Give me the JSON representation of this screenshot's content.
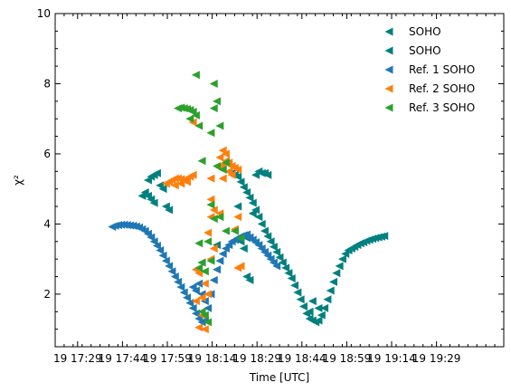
{
  "chart_data": {
    "type": "scatter",
    "xlabel": "Time [UTC]",
    "ylabel": "χ²",
    "x_unit": "minutes after 17:14 UTC on day 19",
    "xlim": [
      0,
      150
    ],
    "ylim": [
      0.5,
      10
    ],
    "grid": false,
    "legend_position": "top-right",
    "x_ticks": [
      {
        "value": 7.5,
        "label": "19 17:29"
      },
      {
        "value": 22.5,
        "label": "19 17:44"
      },
      {
        "value": 37.5,
        "label": "19 17:59"
      },
      {
        "value": 52.5,
        "label": "19 18:14"
      },
      {
        "value": 67.5,
        "label": "19 18:29"
      },
      {
        "value": 82.5,
        "label": "19 18:44"
      },
      {
        "value": 97.5,
        "label": "19 18:59"
      },
      {
        "value": 112.5,
        "label": "19 19:14"
      },
      {
        "value": 127.5,
        "label": "19 19:29"
      }
    ],
    "y_ticks": [
      2,
      4,
      6,
      8,
      10
    ],
    "series": [
      {
        "name": "SOHO",
        "color": "#00807f",
        "marker": "triangle-left",
        "points": [
          [
            58,
            5.5
          ],
          [
            59,
            5.45
          ],
          [
            60,
            5.4
          ],
          [
            61,
            5.35
          ],
          [
            62,
            5.2
          ],
          [
            63,
            5.05
          ],
          [
            64,
            4.9
          ],
          [
            65,
            4.75
          ],
          [
            66,
            4.6
          ],
          [
            67,
            4.4
          ],
          [
            68,
            4.2
          ],
          [
            69,
            4.0
          ],
          [
            70,
            3.8
          ],
          [
            71,
            3.65
          ],
          [
            72,
            3.5
          ],
          [
            73,
            3.35
          ],
          [
            74,
            3.2
          ],
          [
            75,
            3.05
          ],
          [
            76,
            2.9
          ],
          [
            77,
            2.75
          ],
          [
            78,
            2.6
          ],
          [
            79,
            2.45
          ],
          [
            80,
            2.25
          ],
          [
            81,
            2.05
          ],
          [
            82,
            1.85
          ],
          [
            83,
            1.65
          ],
          [
            84,
            1.45
          ],
          [
            85,
            1.3
          ],
          [
            86,
            1.25
          ],
          [
            87,
            1.2
          ],
          [
            88,
            1.25
          ],
          [
            89,
            1.4
          ],
          [
            90,
            1.6
          ],
          [
            91,
            1.85
          ],
          [
            92,
            2.1
          ],
          [
            93,
            2.35
          ],
          [
            94,
            2.6
          ],
          [
            95,
            2.8
          ],
          [
            96,
            3.0
          ],
          [
            97,
            3.15
          ],
          [
            98,
            3.25
          ],
          [
            99,
            3.3
          ],
          [
            100,
            3.35
          ],
          [
            101,
            3.4
          ],
          [
            102,
            3.45
          ],
          [
            103,
            3.48
          ],
          [
            104,
            3.52
          ],
          [
            105,
            3.55
          ],
          [
            106,
            3.58
          ],
          [
            107,
            3.6
          ],
          [
            108,
            3.62
          ],
          [
            109,
            3.64
          ],
          [
            110,
            3.66
          ]
        ]
      },
      {
        "name": "SOHO",
        "color": "#00807f",
        "marker": "triangle-left",
        "points": [
          [
            31,
            5.25
          ],
          [
            32,
            5.35
          ],
          [
            33,
            5.4
          ],
          [
            34,
            5.45
          ],
          [
            35,
            5.1
          ],
          [
            36,
            5.0
          ],
          [
            30,
            4.9
          ],
          [
            31,
            4.8
          ],
          [
            32,
            4.7
          ],
          [
            33,
            4.6
          ],
          [
            29,
            4.8
          ],
          [
            37,
            4.5
          ],
          [
            38,
            4.4
          ],
          [
            68,
            5.5
          ],
          [
            69,
            5.45
          ],
          [
            70,
            5.45
          ],
          [
            67,
            5.4
          ],
          [
            71,
            5.4
          ],
          [
            61,
            4.5
          ],
          [
            66,
            4.3
          ],
          [
            64,
            3.6
          ],
          [
            62,
            3.5
          ],
          [
            63,
            3.3
          ],
          [
            64,
            2.5
          ],
          [
            65,
            2.4
          ],
          [
            86,
            1.8
          ],
          [
            85,
            1.5
          ],
          [
            88,
            1.6
          ],
          [
            54,
            3.4
          ],
          [
            49,
            2.9
          ]
        ]
      },
      {
        "name": "Ref. 1 SOHO",
        "color": "#1f77b4",
        "marker": "triangle-left",
        "points": [
          [
            19,
            3.92
          ],
          [
            20,
            3.95
          ],
          [
            21,
            3.97
          ],
          [
            22,
            3.98
          ],
          [
            23,
            3.98
          ],
          [
            24,
            3.97
          ],
          [
            25,
            3.96
          ],
          [
            26,
            3.95
          ],
          [
            27,
            3.93
          ],
          [
            28,
            3.9
          ],
          [
            29,
            3.85
          ],
          [
            30,
            3.8
          ],
          [
            31,
            3.72
          ],
          [
            32,
            3.62
          ],
          [
            33,
            3.5
          ],
          [
            34,
            3.38
          ],
          [
            35,
            3.25
          ],
          [
            36,
            3.1
          ],
          [
            37,
            2.95
          ],
          [
            38,
            2.8
          ],
          [
            39,
            2.65
          ],
          [
            40,
            2.5
          ],
          [
            41,
            2.35
          ],
          [
            42,
            2.2
          ],
          [
            43,
            2.05
          ],
          [
            44,
            1.9
          ],
          [
            45,
            1.75
          ],
          [
            46,
            1.6
          ],
          [
            47,
            1.45
          ],
          [
            48,
            1.3
          ],
          [
            49,
            1.2
          ],
          [
            50,
            1.25
          ],
          [
            51,
            1.6
          ],
          [
            52,
            2.0
          ],
          [
            53,
            2.4
          ],
          [
            54,
            2.7
          ],
          [
            55,
            2.95
          ],
          [
            56,
            3.15
          ],
          [
            57,
            3.3
          ],
          [
            58,
            3.4
          ],
          [
            59,
            3.5
          ],
          [
            60,
            3.55
          ],
          [
            61,
            3.6
          ],
          [
            62,
            3.65
          ],
          [
            63,
            3.68
          ],
          [
            64,
            3.7
          ],
          [
            65,
            3.62
          ],
          [
            66,
            3.55
          ],
          [
            67,
            3.48
          ],
          [
            68,
            3.4
          ],
          [
            69,
            3.3
          ],
          [
            70,
            3.2
          ],
          [
            71,
            3.1
          ],
          [
            72,
            3.0
          ],
          [
            73,
            2.9
          ],
          [
            74,
            2.8
          ],
          [
            48,
            2.3
          ],
          [
            47,
            2.1
          ],
          [
            46,
            2.2
          ],
          [
            49,
            2.0
          ],
          [
            50,
            1.8
          ]
        ]
      },
      {
        "name": "Ref. 2 SOHO",
        "color": "#ff7f0e",
        "marker": "triangle-left",
        "points": [
          [
            38,
            5.2
          ],
          [
            39,
            5.25
          ],
          [
            40,
            5.3
          ],
          [
            41,
            5.3
          ],
          [
            42,
            5.28
          ],
          [
            43,
            5.25
          ],
          [
            44,
            5.3
          ],
          [
            45,
            5.35
          ],
          [
            46,
            5.4
          ],
          [
            37,
            5.15
          ],
          [
            40,
            5.1
          ],
          [
            42,
            5.15
          ],
          [
            44,
            5.2
          ],
          [
            55,
            5.6
          ],
          [
            56,
            5.7
          ],
          [
            57,
            5.8
          ],
          [
            58,
            5.75
          ],
          [
            59,
            5.65
          ],
          [
            60,
            5.6
          ],
          [
            61,
            5.55
          ],
          [
            56,
            6.1
          ],
          [
            57,
            6.0
          ],
          [
            55,
            5.9
          ],
          [
            58,
            5.5
          ],
          [
            59,
            5.4
          ],
          [
            56,
            5.3
          ],
          [
            46,
            6.9
          ],
          [
            52,
            4.7
          ],
          [
            53,
            4.4
          ],
          [
            52,
            5.3
          ],
          [
            52,
            4.2
          ],
          [
            51,
            3.75
          ],
          [
            60,
            3.85
          ],
          [
            61,
            4.2
          ],
          [
            55,
            4.3
          ],
          [
            53,
            3.3
          ],
          [
            52,
            3.0
          ],
          [
            47,
            2.7
          ],
          [
            48,
            2.6
          ],
          [
            50,
            2.3
          ],
          [
            51,
            2.0
          ],
          [
            49,
            1.9
          ],
          [
            47,
            1.8
          ],
          [
            49,
            1.4
          ],
          [
            48,
            1.05
          ],
          [
            50,
            1.0
          ],
          [
            62,
            2.8
          ],
          [
            61,
            2.75
          ]
        ]
      },
      {
        "name": "Ref. 3 SOHO",
        "color": "#2ca02c",
        "marker": "triangle-left",
        "points": [
          [
            47,
            8.25
          ],
          [
            53,
            8.0
          ],
          [
            54,
            7.5
          ],
          [
            53,
            7.3
          ],
          [
            52,
            6.6
          ],
          [
            41,
            7.3
          ],
          [
            42,
            7.32
          ],
          [
            43,
            7.3
          ],
          [
            44,
            7.28
          ],
          [
            45,
            7.25
          ],
          [
            46,
            7.2
          ],
          [
            47,
            7.1
          ],
          [
            48,
            6.8
          ],
          [
            45,
            7.0
          ],
          [
            55,
            6.8
          ],
          [
            49,
            5.8
          ],
          [
            57,
            5.75
          ],
          [
            54,
            5.65
          ],
          [
            56,
            5.55
          ],
          [
            52,
            4.55
          ],
          [
            53,
            4.15
          ],
          [
            55,
            4.2
          ],
          [
            57,
            3.8
          ],
          [
            60,
            3.8
          ],
          [
            62,
            3.6
          ],
          [
            48,
            3.45
          ],
          [
            51,
            3.5
          ],
          [
            52,
            2.95
          ],
          [
            49,
            2.9
          ],
          [
            48,
            2.75
          ],
          [
            50,
            2.65
          ],
          [
            49,
            1.5
          ],
          [
            50,
            1.4
          ],
          [
            51,
            1.2
          ]
        ]
      }
    ]
  }
}
